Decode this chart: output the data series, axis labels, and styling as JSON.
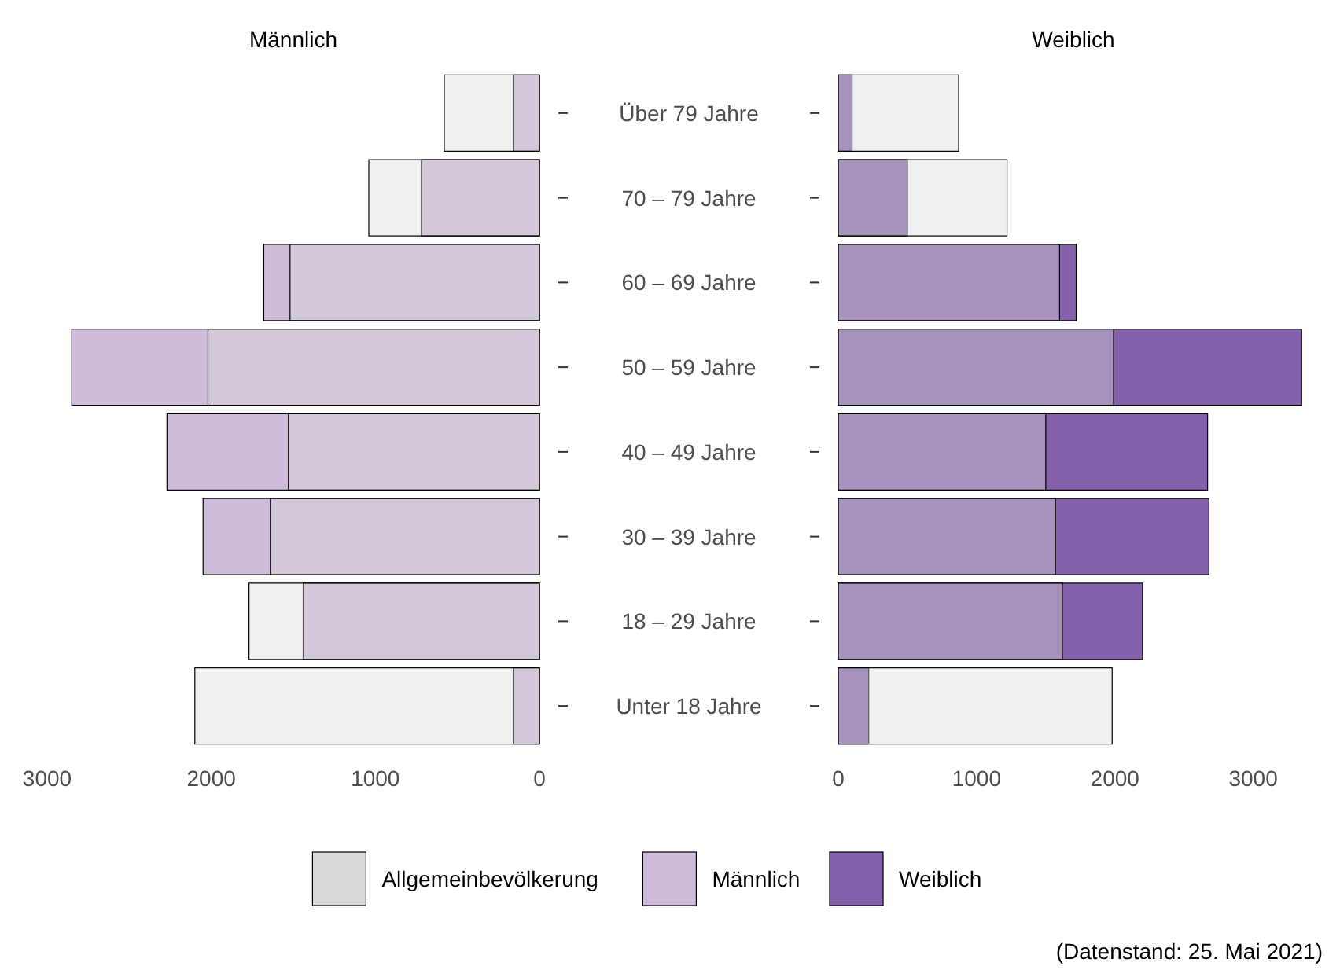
{
  "chart_data": [
    {
      "type": "bar",
      "title": "Männlich",
      "orientation": "horizontal",
      "categories": [
        "Über 79 Jahre",
        "70 – 79 Jahre",
        "60 – 69 Jahre",
        "50 – 59 Jahre",
        "40 – 49 Jahre",
        "30 – 39 Jahre",
        "18 – 29 Jahre",
        "Unter 18 Jahre"
      ],
      "xlim": [
        3000,
        0
      ],
      "xticks": [
        3000,
        2000,
        1000,
        0
      ],
      "legend": "bottom",
      "series": [
        {
          "name": "Allgemeinbevölkerung",
          "color": "#d9d9d9",
          "values": [
            580,
            1040,
            1520,
            2020,
            1530,
            1640,
            1770,
            2100
          ]
        },
        {
          "name": "Männlich",
          "color": "#cfbcdb",
          "values": [
            160,
            720,
            1680,
            2850,
            2270,
            2050,
            1440,
            160
          ]
        }
      ]
    },
    {
      "type": "bar",
      "title": "Weiblich",
      "orientation": "horizontal",
      "categories": [
        null,
        null,
        null,
        null,
        null,
        null,
        null,
        null
      ],
      "xlim": [
        0,
        3400
      ],
      "xticks": [
        0,
        1000,
        2000,
        3000
      ],
      "legend": "bottom",
      "annotations": [
        "(Datenstand: 25. Mai 2021)"
      ],
      "series": [
        {
          "color": "#d9d9d9",
          "values": [
            870,
            1220,
            1600,
            1990,
            1500,
            1570,
            1620,
            1980
          ]
        },
        {
          "name": "Weiblich",
          "color": "#8661ab",
          "values": [
            100,
            500,
            1720,
            3350,
            2670,
            2680,
            2200,
            220
          ]
        }
      ]
    }
  ]
}
